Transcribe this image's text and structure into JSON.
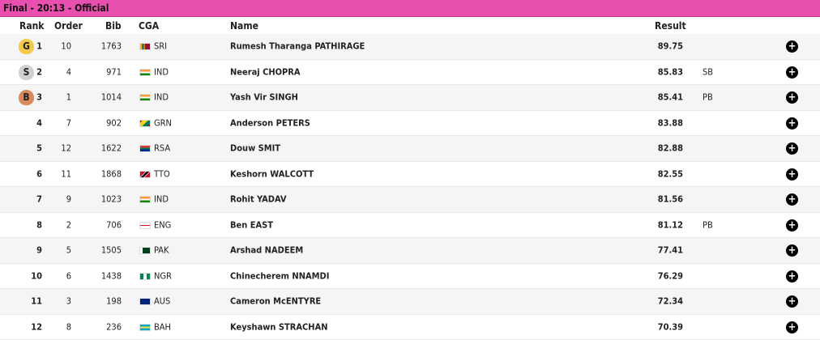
{
  "header": {
    "title": "Final - 20:13 - Official"
  },
  "table": {
    "columns": [
      "Rank",
      "Order",
      "Bib",
      "CGA",
      "Name",
      "Result"
    ],
    "rows": [
      {
        "rank": 1,
        "medal": "G",
        "order": 10,
        "bib": 1763,
        "cga": "SRI",
        "name": "Rumesh Tharanga PATHIRAGE",
        "result": 89.75
      },
      {
        "rank": 2,
        "medal": "S",
        "order": 4,
        "bib": 971,
        "cga": "IND",
        "name": "Neeraj CHOPRA",
        "result": 85.83,
        "note": "SB"
      },
      {
        "rank": 3,
        "medal": "B",
        "order": 1,
        "bib": 1014,
        "cga": "IND",
        "name": "Yash Vir SINGH",
        "result": 85.41,
        "note": "PB"
      },
      {
        "rank": 4,
        "order": 7,
        "bib": 902,
        "cga": "GRN",
        "name": "Anderson PETERS",
        "result": 83.88
      },
      {
        "rank": 5,
        "order": 12,
        "bib": 1622,
        "cga": "RSA",
        "name": "Douw SMIT",
        "result": 82.88
      },
      {
        "rank": 6,
        "order": 11,
        "bib": 1868,
        "cga": "TTO",
        "name": "Keshorn WALCOTT",
        "result": 82.55
      },
      {
        "rank": 7,
        "order": 9,
        "bib": 1023,
        "cga": "IND",
        "name": "Rohit YADAV",
        "result": 81.56
      },
      {
        "rank": 8,
        "order": 2,
        "bib": 706,
        "cga": "ENG",
        "name": "Ben EAST",
        "result": 81.12,
        "note": "PB"
      },
      {
        "rank": 9,
        "order": 5,
        "bib": 1505,
        "cga": "PAK",
        "name": "Arshad NADEEM",
        "result": 77.41
      },
      {
        "rank": 10,
        "order": 6,
        "bib": 1438,
        "cga": "NGR",
        "name": "Chinecherem NNAMDI",
        "result": 76.29
      },
      {
        "rank": 11,
        "order": 3,
        "bib": 198,
        "cga": "AUS",
        "name": "Cameron McENTYRE",
        "result": 72.34
      },
      {
        "rank": 12,
        "order": 8,
        "bib": 236,
        "cga": "BAH",
        "name": "Keyshawn STRACHAN",
        "result": 70.39
      }
    ]
  }
}
